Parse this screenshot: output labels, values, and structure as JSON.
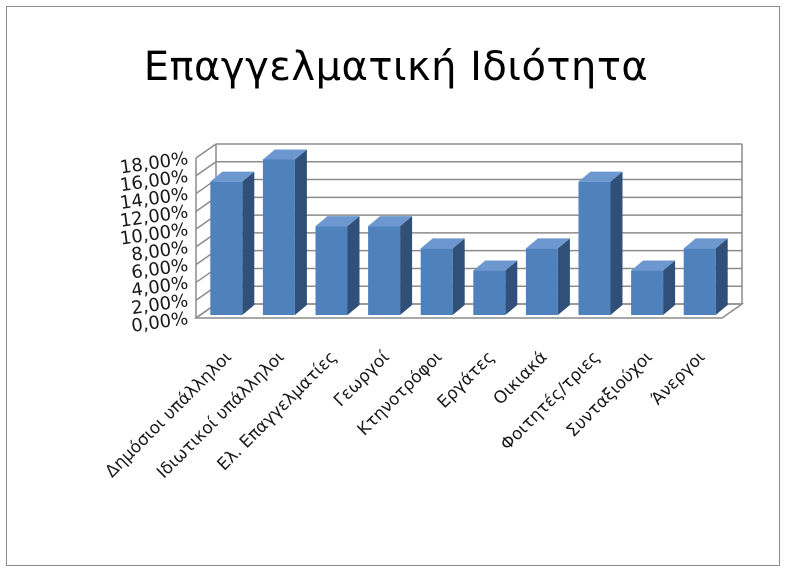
{
  "chart_data": {
    "type": "bar",
    "title": "Επαγγελματική Ιδιότητα",
    "categories": [
      "Δημόσιοι υπάλληλοι",
      "Ιδιωτικοί υπάλληλοι",
      "Ελ. Επαγγελματίες",
      "Γεωργοί",
      "Κτηνοτρόφοι",
      "Εργάτες",
      "Οικιακά",
      "Φοιτητές/τριες",
      "Συνταξιούχοι",
      "Άνεργοι"
    ],
    "values": [
      15.0,
      17.5,
      10.0,
      10.0,
      7.5,
      5.0,
      7.5,
      15.0,
      5.0,
      7.5
    ],
    "ylim": [
      0,
      18
    ],
    "yticks": [
      "0,00%",
      "2,00%",
      "4,00%",
      "6,00%",
      "8,00%",
      "10,00%",
      "12,00%",
      "14,00%",
      "16,00%",
      "18,00%"
    ],
    "grid": true,
    "legend": "none",
    "style": "3d-column",
    "colors": {
      "bar_front": "#4f81bd",
      "bar_side": "#30507a",
      "bar_top": "#6d97cf",
      "grid": "#8c8c8c"
    }
  }
}
